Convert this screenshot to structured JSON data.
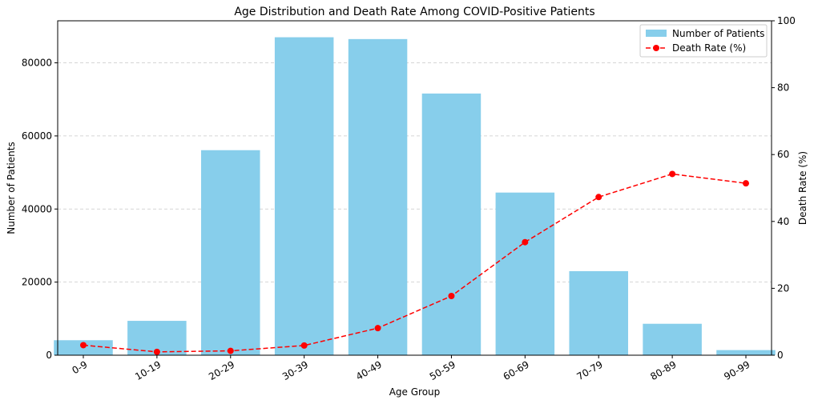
{
  "chart_data": {
    "type": "bar",
    "title": "Age Distribution and Death Rate Among COVID-Positive Patients",
    "xlabel": "Age Group",
    "ylabel": "Number of Patients",
    "y2label": "Death Rate (%)",
    "categories": [
      "0-9",
      "10-19",
      "20-29",
      "30-39",
      "40-49",
      "50-59",
      "60-69",
      "70-79",
      "80-89",
      "90-99"
    ],
    "ylim": [
      0,
      91500
    ],
    "y2lim": [
      0,
      100
    ],
    "yticks": [
      0,
      20000,
      40000,
      60000,
      80000
    ],
    "y2ticks": [
      0,
      20,
      40,
      60,
      80,
      100
    ],
    "grid": "horizontal dashed",
    "legend_position": "top-right",
    "series": [
      {
        "name": "Number of Patients",
        "type": "bar",
        "axis": "left",
        "color": "#87ceeb",
        "values": [
          4100,
          9400,
          56100,
          87000,
          86500,
          71600,
          44500,
          23000,
          8600,
          1400
        ]
      },
      {
        "name": "Death Rate (%)",
        "type": "line",
        "axis": "right",
        "color": "#ff0000",
        "style": "dashed",
        "marker": "circle",
        "values": [
          3.0,
          1.0,
          1.3,
          2.9,
          8.1,
          17.7,
          33.8,
          47.3,
          54.2,
          51.4
        ]
      }
    ]
  }
}
